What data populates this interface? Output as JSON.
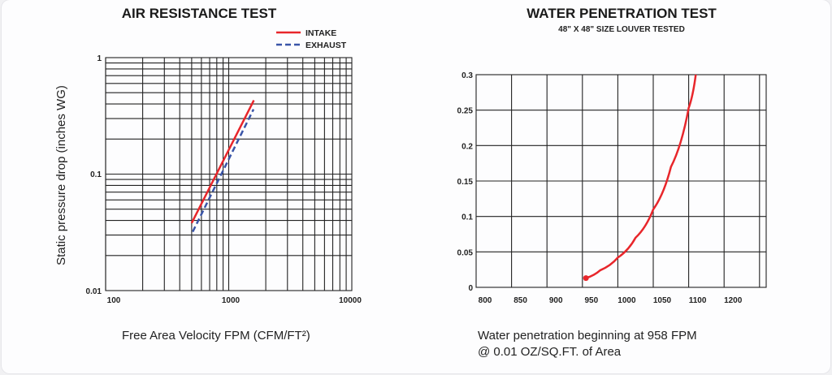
{
  "chart_data": [
    {
      "type": "line",
      "title": "AIR RESISTANCE TEST",
      "xlabel": "Free Area Velocity FPM (CFM/FT²)",
      "ylabel": "Static pressure drop (inches WG)",
      "xscale": "log",
      "yscale": "log",
      "xlim": [
        100,
        10000
      ],
      "ylim": [
        0.01,
        1
      ],
      "xticks": [
        "100",
        "1000",
        "10000"
      ],
      "yticks": [
        "1",
        "0.1",
        "0.01"
      ],
      "grid": true,
      "legend_position": "top-right",
      "series": [
        {
          "name": "INTAKE",
          "color": "#e8262b",
          "style": "solid",
          "x": [
            500,
            1600
          ],
          "y": [
            0.038,
            0.43
          ]
        },
        {
          "name": "EXHAUST",
          "color": "#3a55a8",
          "style": "dashed",
          "x": [
            510,
            1590
          ],
          "y": [
            0.032,
            0.36
          ]
        }
      ]
    },
    {
      "type": "line",
      "title": "WATER PENETRATION TEST",
      "subtitle": "48\" X 48\" SIZE LOUVER TESTED",
      "caption_lines": [
        "Water penetration beginning at 958 FPM",
        "@ 0.01 OZ/SQ.FT. of Area"
      ],
      "xlim": [
        800,
        1210
      ],
      "ylim": [
        0,
        0.3
      ],
      "xticks": [
        "800",
        "850",
        "900",
        "950",
        "1000",
        "1050",
        "1100",
        "1200"
      ],
      "yticks": [
        "0.3",
        "0.25",
        "0.2",
        "0.15",
        "0.1",
        "0.05",
        "0"
      ],
      "grid": true,
      "series": [
        {
          "name": "water penetration",
          "color": "#e8262b",
          "x": [
            955,
            975,
            1000,
            1025,
            1050,
            1075,
            1100,
            1110
          ],
          "y": [
            0.013,
            0.024,
            0.042,
            0.07,
            0.11,
            0.17,
            0.253,
            0.3
          ]
        }
      ]
    }
  ]
}
